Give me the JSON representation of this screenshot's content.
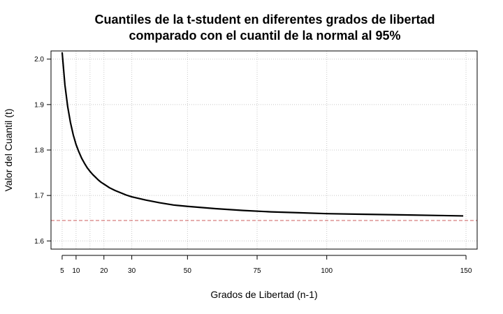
{
  "chart_data": {
    "type": "line",
    "title_lines": [
      "Cuantiles de la t-student en diferentes grados de libertad",
      "comparado con el cuantil de la normal al 95%"
    ],
    "xlabel": "Grados de Libertad (n-1)",
    "ylabel": "Valor del Cuantil (t)",
    "xlim": [
      1,
      154
    ],
    "ylim": [
      1.582,
      2.018
    ],
    "x_ticks": [
      5,
      10,
      20,
      30,
      50,
      75,
      100,
      150
    ],
    "x_grid": [
      5,
      10,
      15,
      20,
      30,
      50,
      75,
      100,
      150
    ],
    "y_ticks": [
      1.6,
      1.7,
      1.8,
      1.9,
      2.0
    ],
    "y_tick_labels": [
      "1.6",
      "1.7",
      "1.8",
      "1.9",
      "2.0"
    ],
    "grid": true,
    "series": [
      {
        "kind": "curve",
        "color": "#000000",
        "points": [
          [
            5,
            2.015
          ],
          [
            6,
            1.943
          ],
          [
            7,
            1.895
          ],
          [
            8,
            1.86
          ],
          [
            9,
            1.833
          ],
          [
            10,
            1.812
          ],
          [
            11,
            1.796
          ],
          [
            12,
            1.782
          ],
          [
            13,
            1.771
          ],
          [
            14,
            1.761
          ],
          [
            15,
            1.753
          ],
          [
            16,
            1.746
          ],
          [
            17,
            1.74
          ],
          [
            18,
            1.734
          ],
          [
            19,
            1.729
          ],
          [
            20,
            1.725
          ],
          [
            22,
            1.717
          ],
          [
            24,
            1.711
          ],
          [
            26,
            1.706
          ],
          [
            28,
            1.701
          ],
          [
            30,
            1.697
          ],
          [
            35,
            1.69
          ],
          [
            40,
            1.684
          ],
          [
            45,
            1.679
          ],
          [
            50,
            1.676
          ],
          [
            60,
            1.671
          ],
          [
            70,
            1.667
          ],
          [
            80,
            1.664
          ],
          [
            90,
            1.662
          ],
          [
            100,
            1.66
          ],
          [
            110,
            1.659
          ],
          [
            120,
            1.658
          ],
          [
            130,
            1.657
          ],
          [
            140,
            1.656
          ],
          [
            149,
            1.655
          ]
        ]
      },
      {
        "kind": "hline",
        "y": 1.645,
        "color": "#cd5c5c",
        "dashed": true
      }
    ]
  }
}
